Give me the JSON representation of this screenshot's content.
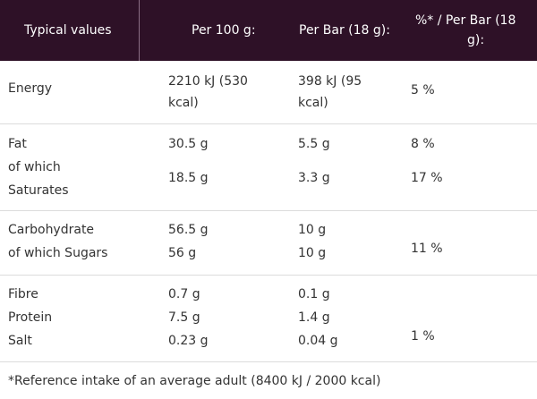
{
  "header": {
    "col1": "Typical values",
    "col2": "Per 100 g:",
    "col3": "Per Bar (18 g):",
    "col4_line1": "%* / Per Bar (18",
    "col4_line2": "g):"
  },
  "rows": [
    {
      "labels": [
        "Energy"
      ],
      "per100": [
        "2210 kJ (530",
        "kcal)"
      ],
      "perbar": [
        "398 kJ (95",
        "kcal)"
      ],
      "pct": [
        "5 %"
      ]
    },
    {
      "labels": [
        "Fat",
        "of which",
        "Saturates"
      ],
      "per100": [
        "30.5 g",
        "18.5 g"
      ],
      "perbar": [
        "5.5 g",
        "3.3 g"
      ],
      "pct": [
        "8 %",
        "17 %"
      ]
    },
    {
      "labels": [
        "Carbohydrate",
        "of which Sugars"
      ],
      "per100": [
        "56.5 g",
        "56 g"
      ],
      "perbar": [
        "10 g",
        "10 g"
      ],
      "pct": [
        "11 %"
      ]
    },
    {
      "labels": [
        "Fibre",
        "Protein",
        "Salt"
      ],
      "per100": [
        "0.7 g",
        "7.5 g",
        "0.23 g"
      ],
      "perbar": [
        "0.1 g",
        "1.4 g",
        "0.04 g"
      ],
      "pct": [
        "1 %"
      ]
    }
  ],
  "footnote": "*Reference intake of an average adult (8400 kJ / 2000 kcal)",
  "colors": {
    "header_bg": "#2e1127",
    "text": "#333333",
    "divider": "#dcdcdc"
  }
}
